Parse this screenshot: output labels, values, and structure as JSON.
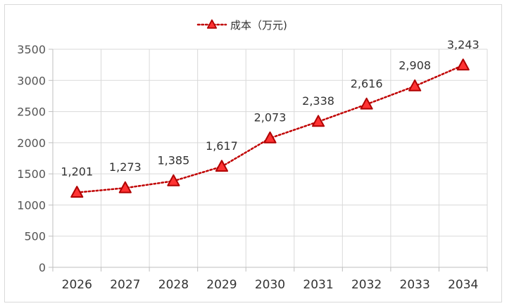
{
  "chart_data": {
    "type": "line",
    "title": "",
    "xlabel": "",
    "ylabel": "",
    "categories": [
      "2026",
      "2027",
      "2028",
      "2029",
      "2030",
      "2031",
      "2032",
      "2033",
      "2034"
    ],
    "series": [
      {
        "name": "成本（万元)",
        "values": [
          1201,
          1273,
          1385,
          1617,
          2073,
          2338,
          2616,
          2908,
          3243
        ],
        "data_labels": [
          "1,201",
          "1,273",
          "1,385",
          "1,617",
          "2,073",
          "2,338",
          "2,616",
          "2,908",
          "3,243"
        ]
      }
    ],
    "ylim": [
      0,
      3500
    ],
    "yticks": [
      0,
      500,
      1000,
      1500,
      2000,
      2500,
      3000,
      3500
    ],
    "grid": true,
    "legend_position": "top-center",
    "line_style": "dotted",
    "marker": "triangle",
    "colors": {
      "line": "#c00000",
      "marker_fill": "#ff3333",
      "marker_stroke": "#b00000",
      "grid": "#d9d9d9",
      "axis": "#bfbfbf"
    }
  }
}
